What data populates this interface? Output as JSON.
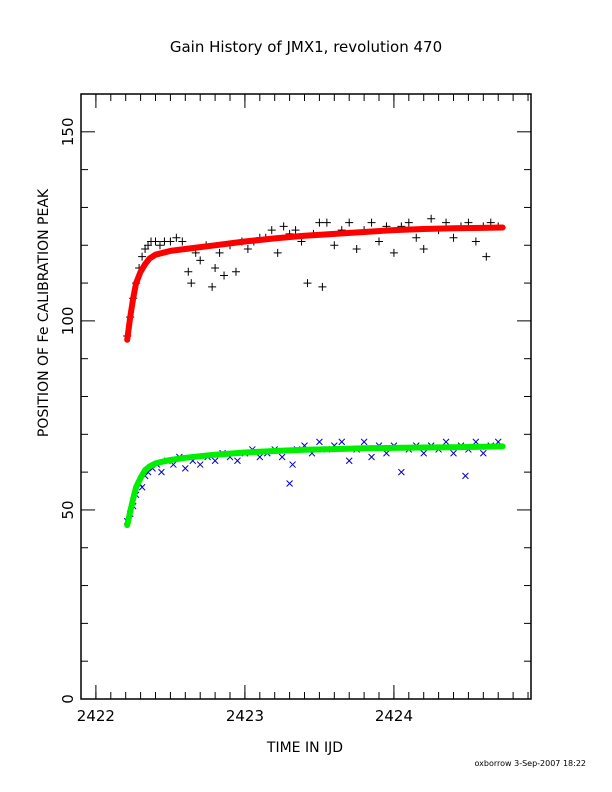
{
  "chart_data": {
    "type": "scatter",
    "title": "Gain History of JMX1, revolution 470",
    "xlabel": "TIME IN IJD",
    "ylabel": "POSITION OF Fe CALIBRATION PEAK",
    "xlim": [
      2421.9,
      2424.92
    ],
    "ylim": [
      0,
      160
    ],
    "xticks": [
      2422,
      2423,
      2424
    ],
    "xtick_labels": [
      "2422",
      "2423",
      "2424"
    ],
    "yticks": [
      0,
      50,
      100,
      150
    ],
    "ytick_labels": [
      "0",
      "50",
      "100",
      "150"
    ],
    "grid": false,
    "series": [
      {
        "marker": "plus",
        "color": "#000000",
        "x": [
          2422.21,
          2422.23,
          2422.25,
          2422.27,
          2422.29,
          2422.31,
          2422.33,
          2422.35,
          2422.37,
          2422.4,
          2422.43,
          2422.46,
          2422.5,
          2422.54,
          2422.58,
          2422.62,
          2422.64,
          2422.67,
          2422.7,
          2422.74,
          2422.78,
          2422.8,
          2422.83,
          2422.86,
          2422.9,
          2422.94,
          2422.98,
          2423.02,
          2423.06,
          2423.1,
          2423.14,
          2423.18,
          2423.22,
          2423.26,
          2423.3,
          2423.34,
          2423.38,
          2423.42,
          2423.46,
          2423.5,
          2423.52,
          2423.55,
          2423.6,
          2423.65,
          2423.7,
          2423.75,
          2423.8,
          2423.85,
          2423.9,
          2423.95,
          2424.0,
          2424.05,
          2424.1,
          2424.15,
          2424.2,
          2424.25,
          2424.3,
          2424.35,
          2424.4,
          2424.45,
          2424.5,
          2424.55,
          2424.6,
          2424.62,
          2424.65,
          2424.7
        ],
        "y": [
          96,
          101,
          106,
          110,
          114,
          117,
          119,
          120,
          121,
          121,
          120,
          121,
          121,
          122,
          121,
          113,
          110,
          118,
          116,
          120,
          109,
          114,
          118,
          112,
          120,
          113,
          121,
          119,
          121,
          122,
          122,
          124,
          118,
          125,
          123,
          124,
          121,
          110,
          123,
          126,
          109,
          126,
          120,
          124,
          126,
          119,
          124,
          126,
          121,
          125,
          118,
          125,
          126,
          122,
          119,
          127,
          124,
          126,
          122,
          125,
          126,
          121,
          125,
          117,
          126,
          125
        ]
      },
      {
        "marker": "cross",
        "color": "#0000cc",
        "x": [
          2422.21,
          2422.23,
          2422.25,
          2422.27,
          2422.29,
          2422.31,
          2422.33,
          2422.35,
          2422.38,
          2422.41,
          2422.44,
          2422.48,
          2422.52,
          2422.56,
          2422.6,
          2422.65,
          2422.7,
          2422.75,
          2422.8,
          2422.85,
          2422.9,
          2422.95,
          2423.0,
          2423.05,
          2423.1,
          2423.15,
          2423.2,
          2423.25,
          2423.3,
          2423.32,
          2423.35,
          2423.4,
          2423.45,
          2423.5,
          2423.55,
          2423.6,
          2423.65,
          2423.7,
          2423.75,
          2423.8,
          2423.85,
          2423.9,
          2423.95,
          2424.0,
          2424.05,
          2424.1,
          2424.15,
          2424.2,
          2424.25,
          2424.3,
          2424.35,
          2424.4,
          2424.45,
          2424.48,
          2424.5,
          2424.55,
          2424.6,
          2424.65,
          2424.7
        ],
        "y": [
          47,
          49,
          51,
          54,
          57,
          56,
          59,
          60,
          61,
          62,
          60,
          63,
          62,
          64,
          61,
          63,
          62,
          64,
          63,
          65,
          64,
          63,
          65,
          66,
          64,
          65,
          66,
          64,
          57,
          62,
          66,
          67,
          65,
          68,
          66,
          67,
          68,
          63,
          66,
          68,
          64,
          67,
          65,
          67,
          60,
          66,
          67,
          65,
          67,
          66,
          68,
          65,
          67,
          59,
          66,
          68,
          65,
          67,
          68
        ]
      },
      {
        "name": "",
        "marker": "line",
        "color": "#ff0000",
        "x": [
          2422.21,
          2422.23,
          2422.25,
          2422.27,
          2422.3,
          2422.33,
          2422.36,
          2422.4,
          2422.45,
          2422.5,
          2422.6,
          2422.7,
          2422.8,
          2422.9,
          2423.0,
          2423.2,
          2423.4,
          2423.6,
          2423.8,
          2424.0,
          2424.2,
          2424.4,
          2424.6,
          2424.73
        ],
        "y": [
          95,
          101,
          106,
          110,
          113,
          115,
          116.5,
          117.5,
          118,
          118.5,
          119,
          119.5,
          120,
          120.5,
          121,
          121.8,
          122.5,
          123,
          123.5,
          124,
          124.3,
          124.5,
          124.6,
          124.7
        ]
      },
      {
        "name": "",
        "marker": "line",
        "color": "#00ee00",
        "x": [
          2422.21,
          2422.23,
          2422.25,
          2422.27,
          2422.3,
          2422.33,
          2422.36,
          2422.4,
          2422.45,
          2422.5,
          2422.6,
          2422.7,
          2422.8,
          2422.9,
          2423.0,
          2423.2,
          2423.4,
          2423.6,
          2423.8,
          2424.0,
          2424.2,
          2424.4,
          2424.6,
          2424.73
        ],
        "y": [
          46,
          49.5,
          53,
          56,
          58.5,
          60.5,
          61.5,
          62.3,
          62.8,
          63.2,
          63.8,
          64.2,
          64.6,
          64.9,
          65.2,
          65.6,
          65.9,
          66.1,
          66.3,
          66.4,
          66.5,
          66.6,
          66.7,
          66.8
        ]
      }
    ]
  },
  "footer": "oxborrow 3-Sep-2007 18:22"
}
